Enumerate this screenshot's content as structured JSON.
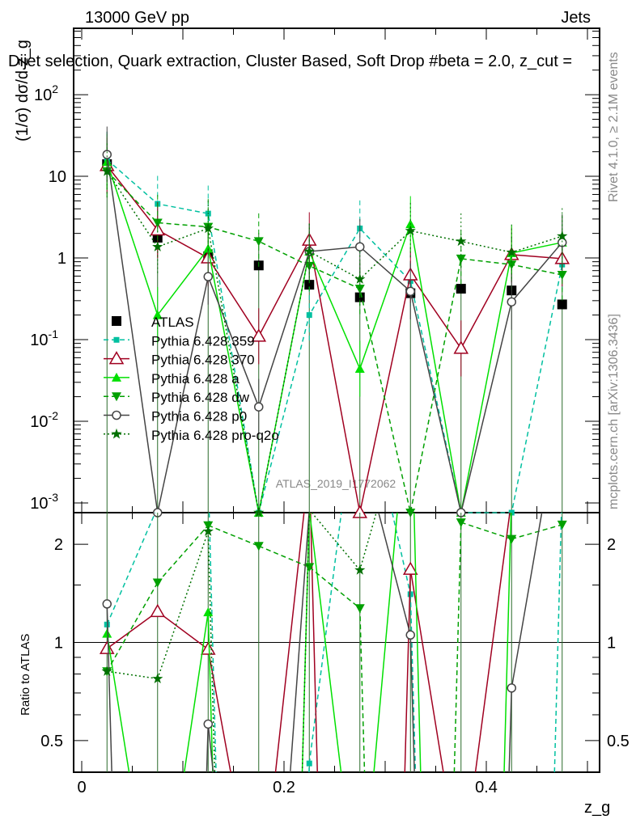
{
  "header": {
    "left": "13000 GeV pp",
    "right": "Jets"
  },
  "side": {
    "rivet": "Rivet 4.1.0, ≥ 2.1M events",
    "mcplots": "mcplots.cern.ch [arXiv:1306.3436]"
  },
  "watermark": "ATLAS_2019_I1772062",
  "chart_data": {
    "type": "line",
    "title": "Dijet selection, Quark extraction, Cluster Based, Soft Drop #beta = 2.0, z_cut =",
    "ylabel": "(1/σ) dσ/d z_g",
    "ratio_ylabel": "Ratio to ATLAS",
    "xlabel": "z_g",
    "xlim": [
      -0.008,
      0.512
    ],
    "ylim": [
      0.00076,
      650
    ],
    "ratio_ylim": [
      0.4,
      2.5
    ],
    "yscale": "log",
    "xticks": [
      "0",
      "0.2",
      "0.4"
    ],
    "yticks": [
      "10^-3",
      "10^-2",
      "10^-1",
      "1",
      "10",
      "10^2"
    ],
    "ratio_yticks": [
      "0.5",
      "1",
      "2"
    ],
    "legend_position": "middle-left",
    "x": [
      0.025,
      0.075,
      0.125,
      0.175,
      0.225,
      0.275,
      0.325,
      0.375,
      0.425,
      0.475
    ],
    "series": [
      {
        "name": "ATLAS",
        "color": "#000000",
        "marker": "square",
        "dash": "none",
        "values": [
          14.1,
          1.77,
          1.05,
          0.81,
          0.47,
          0.33,
          0.37,
          0.42,
          0.4,
          0.27
        ]
      },
      {
        "name": "Pythia 6.428 359",
        "color": "#00c0a0",
        "marker": "smallsquare",
        "dash": "6,4",
        "values": [
          16,
          4.6,
          3.5,
          0,
          0.2,
          2.3,
          0.52,
          0,
          0,
          0.83
        ]
      },
      {
        "name": "Pythia 6.428 370",
        "color": "#a00020",
        "marker": "opentriangle",
        "dash": "none",
        "values": [
          13.5,
          2.2,
          1.0,
          0.11,
          1.65,
          0,
          0.62,
          0.078,
          1.1,
          0.98
        ]
      },
      {
        "name": "Pythia 6.428 a",
        "color": "#00e000",
        "marker": "triangle",
        "dash": "none",
        "values": [
          15,
          0.2,
          1.3,
          0,
          1.2,
          0.044,
          2.6,
          0,
          1.15,
          1.55
        ]
      },
      {
        "name": "Pythia 6.428 dw",
        "color": "#00a000",
        "marker": "downtriangle",
        "dash": "6,4",
        "values": [
          11.5,
          2.7,
          2.4,
          1.6,
          0.8,
          0.42,
          0,
          0.98,
          0.83,
          0.62
        ]
      },
      {
        "name": "Pythia 6.428 p0",
        "color": "#444444",
        "marker": "opencircle",
        "dash": "none",
        "values": [
          18.5,
          0,
          0.59,
          0.015,
          1.2,
          1.37,
          0.39,
          0,
          0.29,
          1.55
        ]
      },
      {
        "name": "Pythia 6.428 pro-q2o",
        "color": "#007000",
        "marker": "star",
        "dash": "2,3",
        "values": [
          11.5,
          1.37,
          2.3,
          0,
          1.2,
          0.55,
          2.15,
          1.6,
          1.17,
          1.85
        ]
      }
    ]
  }
}
